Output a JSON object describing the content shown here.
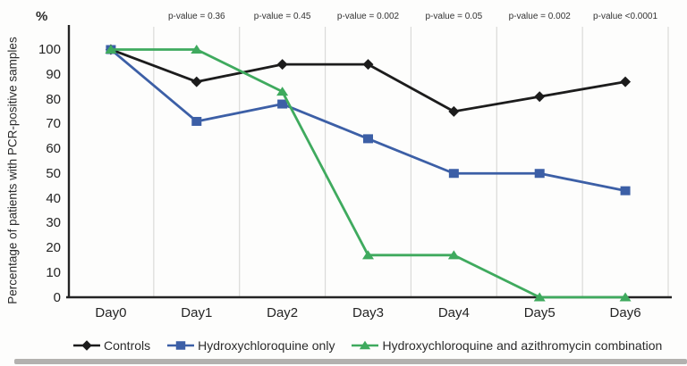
{
  "chart_data": {
    "type": "line",
    "title": "",
    "xlabel": "",
    "ylabel": "Percentage of patients with PCR-positive samples",
    "y_axis_unit_label": "%",
    "categories": [
      "Day0",
      "Day1",
      "Day2",
      "Day3",
      "Day4",
      "Day5",
      "Day6"
    ],
    "series": [
      {
        "name": "Controls",
        "marker": "diamond",
        "color": "#1c1c1c",
        "values": [
          100,
          87,
          94,
          94,
          75,
          81,
          87
        ]
      },
      {
        "name": "Hydroxychloroquine only",
        "marker": "square",
        "color": "#3c5fa6",
        "values": [
          100,
          71,
          78,
          64,
          50,
          50,
          43
        ]
      },
      {
        "name": "Hydroxychloroquine and azithromycin combination",
        "marker": "triangle",
        "color": "#3faa5e",
        "values": [
          100,
          100,
          83,
          17,
          17,
          0,
          0
        ]
      }
    ],
    "p_value_annotations": [
      {
        "category": "Day1",
        "label": "p-value = 0.36"
      },
      {
        "category": "Day2",
        "label": "p-value = 0.45"
      },
      {
        "category": "Day3",
        "label": "p-value = 0.002"
      },
      {
        "category": "Day4",
        "label": "p-value = 0.05"
      },
      {
        "category": "Day5",
        "label": "p-value = 0.002"
      },
      {
        "category": "Day6",
        "label": "p-value <0.0001"
      }
    ],
    "yticks": [
      0,
      10,
      20,
      30,
      40,
      50,
      60,
      70,
      80,
      90,
      100
    ],
    "ylim": [
      0,
      100
    ],
    "grid": "vertical-category-separators",
    "legend_position": "bottom",
    "axis_color": "#242424",
    "gridline_color": "#dadad8"
  }
}
